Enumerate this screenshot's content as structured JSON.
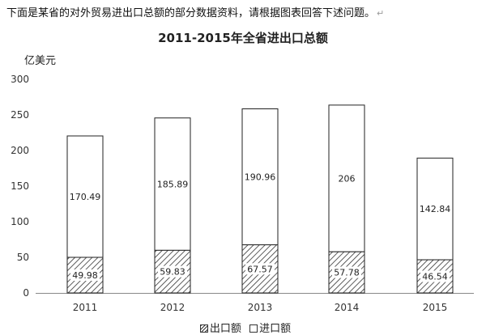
{
  "intro": {
    "text": "下面是某省的对外贸易进出口总额的部分数据资料，请根据图表回答下述问题。",
    "mark": "↵"
  },
  "chart_data": {
    "type": "bar",
    "stacked": true,
    "title": "2011-2015年全省进出口总额",
    "ylabel": "亿美元",
    "xlabel": "",
    "categories": [
      "2011",
      "2012",
      "2013",
      "2014",
      "2015"
    ],
    "ylim": [
      0,
      300
    ],
    "yticks": [
      0,
      50,
      100,
      150,
      200,
      250,
      300
    ],
    "grid": false,
    "legend_position": "bottom",
    "series": [
      {
        "name": "出口额",
        "values": [
          49.98,
          59.83,
          67.57,
          57.78,
          46.54
        ],
        "pattern": "hatch"
      },
      {
        "name": "进口额",
        "values": [
          170.49,
          185.89,
          190.96,
          206,
          142.84
        ],
        "pattern": "plain"
      }
    ]
  }
}
